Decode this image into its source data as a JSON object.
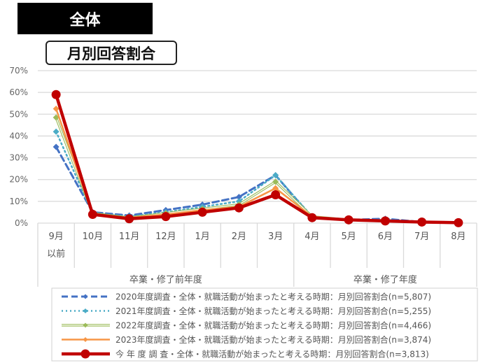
{
  "header": {
    "title": "全体",
    "subtitle": "月別回答割合"
  },
  "chart_data": {
    "type": "line",
    "title": "月別回答割合",
    "xlabel": "",
    "ylabel": "",
    "ylim": [
      0,
      70
    ],
    "y_ticks": [
      "0%",
      "10%",
      "20%",
      "30%",
      "40%",
      "50%",
      "60%",
      "70%"
    ],
    "grid": true,
    "legend_position": "bottom",
    "categories": [
      "9月以前",
      "10月",
      "11月",
      "12月",
      "1月",
      "2月",
      "3月",
      "4月",
      "5月",
      "6月",
      "7月",
      "8月"
    ],
    "category_lines": [
      [
        "9月",
        "以前"
      ],
      [
        "10月"
      ],
      [
        "11月"
      ],
      [
        "12月"
      ],
      [
        "1月"
      ],
      [
        "2月"
      ],
      [
        "3月"
      ],
      [
        "4月"
      ],
      [
        "5月"
      ],
      [
        "6月"
      ],
      [
        "7月"
      ],
      [
        "8月"
      ]
    ],
    "groups": [
      {
        "label": "卒業・修了前年度",
        "from": 0,
        "to": 6
      },
      {
        "label": "卒業・修了年度",
        "from": 7,
        "to": 11
      }
    ],
    "series": [
      {
        "name": "2020年度調査・全体・就職活動が始まったと考える時期：月別回答割合(n=5,807)",
        "color": "#4472c4",
        "style": "dashed",
        "marker": "diamond",
        "values": [
          35,
          5,
          3.5,
          6,
          8.5,
          12,
          22,
          2.5,
          1.5,
          2,
          0.5,
          0.3
        ]
      },
      {
        "name": "2021年度調査・全体・就職活動が始まったと考える時期：月別回答割合(n=5,255)",
        "color": "#4bacc6",
        "style": "dotted",
        "marker": "diamond",
        "values": [
          42,
          4.5,
          3,
          5,
          7.5,
          10,
          22,
          3,
          1.5,
          1.5,
          0.5,
          0.2
        ]
      },
      {
        "name": "2022年度調査・全体・就職活動が始まったと考える時期：月別回答割合(n=4,466)",
        "color": "#9bbb59",
        "style": "solid-thin",
        "marker": "diamond",
        "values": [
          48.5,
          4.5,
          2.5,
          4.5,
          6.5,
          8.5,
          19,
          3,
          1.5,
          1,
          0.5,
          0.2
        ]
      },
      {
        "name": "2023年度調査・全体・就職活動が始まったと考える時期：月別回答割合(n=3,874)",
        "color": "#f79646",
        "style": "solid",
        "marker": "diamond",
        "values": [
          52.5,
          4,
          2.5,
          4,
          6,
          7.5,
          16,
          3,
          1.5,
          1,
          0.5,
          0.2
        ]
      },
      {
        "name": "今年度調査・全体・就職活動が始まったと考える時期：月別回答割合(n=3,813)",
        "color": "#c00000",
        "style": "solid-thick",
        "marker": "circle",
        "values": [
          59,
          4,
          2,
          3,
          5,
          7,
          13,
          2.5,
          1.5,
          1,
          0.5,
          0.2
        ]
      }
    ]
  },
  "legend": {
    "items": [
      "2020年度調査・全体・就職活動が始まったと考える時期：月別回答割合(n=5,807)",
      "2021年度調査・全体・就職活動が始まったと考える時期：月別回答割合(n=5,255)",
      "2022年度調査・全体・就職活動が始まったと考える時期：月別回答割合(n=4,466)",
      "2023年度調査・全体・就職活動が始まったと考える時期：月別回答割合(n=3,874)",
      "今 年 度 調 査・全体・就職活動が始まったと考える時期：月別回答割合(n=3,813)"
    ]
  }
}
